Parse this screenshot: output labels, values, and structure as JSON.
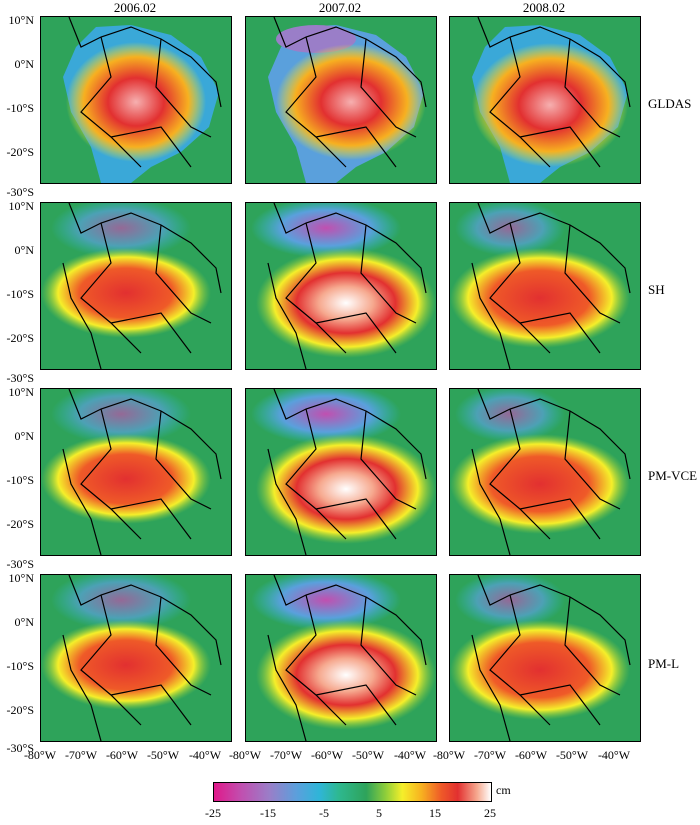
{
  "columns": [
    "2006.02",
    "2007.02",
    "2008.02"
  ],
  "rows": [
    "GLDAS",
    "SH",
    "PM-VCE",
    "PM-L"
  ],
  "lat_ticks": [
    "10°N",
    "0°N",
    "-10°S",
    "-20°S",
    "-30°S"
  ],
  "lon_ticks": [
    "-80°W",
    "-70°W",
    "-60°W",
    "-50°W",
    "-40°W"
  ],
  "colorbar": {
    "ticks": [
      "-25",
      "-15",
      "-5",
      "5",
      "15",
      "25"
    ],
    "unit": "cm"
  },
  "colors": {
    "ocean": "#2ea35a",
    "positive_high": "#e23030",
    "negative_low": "#e0198a"
  }
}
